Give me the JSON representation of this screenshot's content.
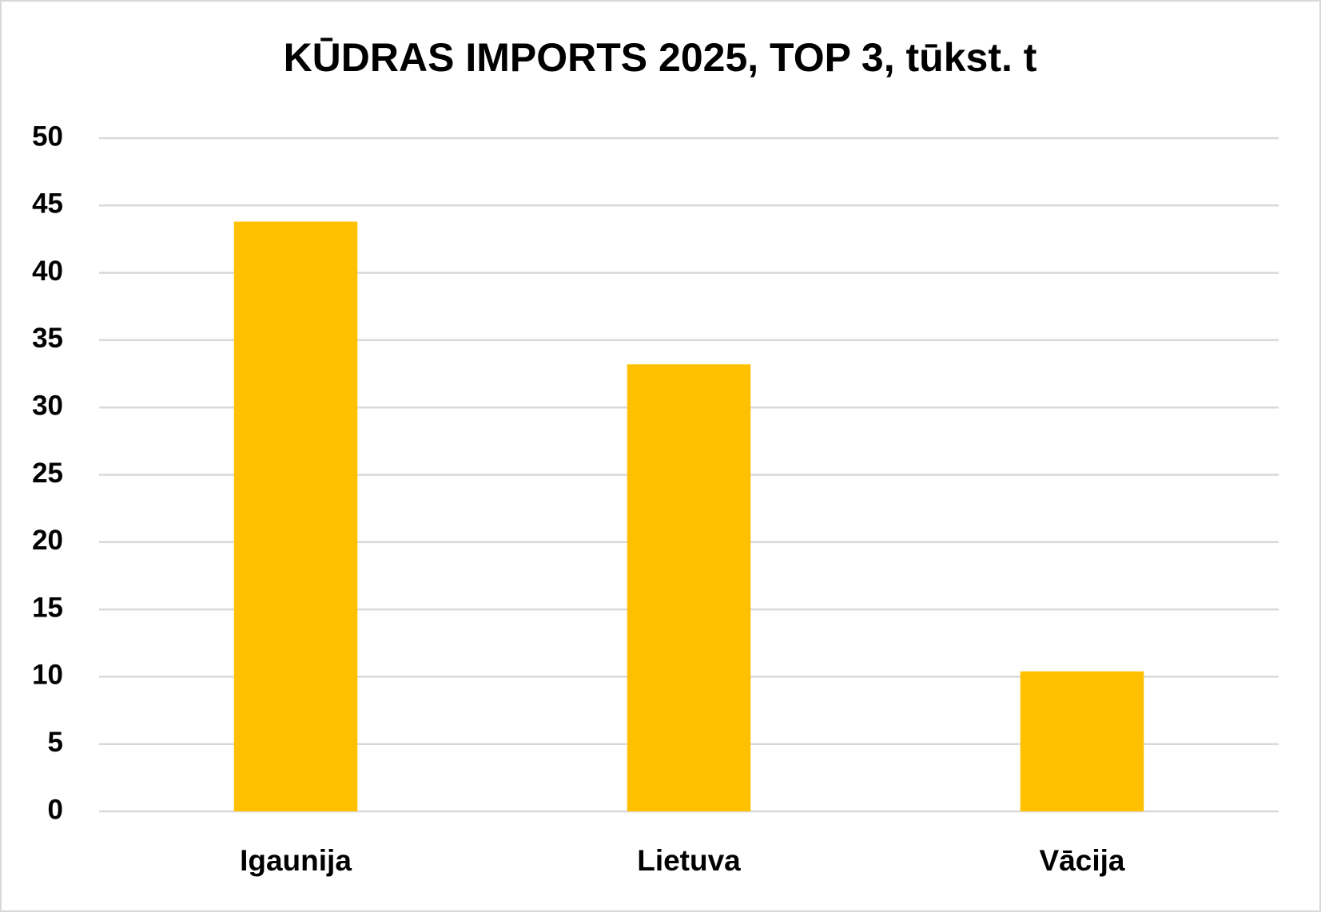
{
  "chart_data": {
    "type": "bar",
    "title": "KŪDRAS IMPORTS 2025, TOP 3, tūkst. t",
    "categories": [
      "Igaunija",
      "Lietuva",
      "Vācija"
    ],
    "values": [
      43.8,
      33.2,
      10.4
    ],
    "color": "#ffc000",
    "ylim": [
      0,
      50
    ],
    "yticks": [
      0,
      5,
      10,
      15,
      20,
      25,
      30,
      35,
      40,
      45,
      50
    ],
    "grid": true
  }
}
